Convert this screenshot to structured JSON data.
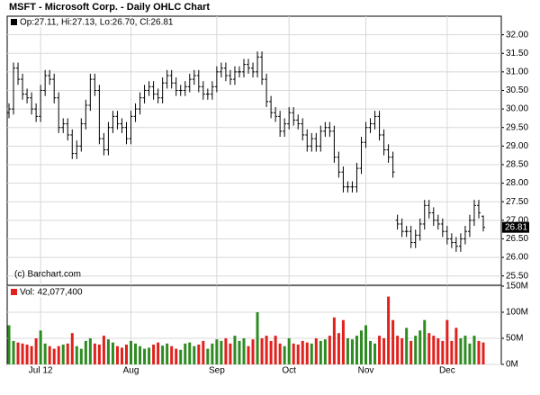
{
  "chart_data": {
    "type": "ohlc",
    "title": "MSFT - Microsoft Corp. - Daily OHLC Chart",
    "ohlc_label": "Op:27.11, Hi:27.13, Lo:26.70, Cl:26.81",
    "credit": "(c) Barchart.com",
    "color": "#000000",
    "up_color": "#2e8b22",
    "down_color": "#e0211d",
    "grid": true,
    "categories": [
      null,
      null,
      null,
      null,
      null,
      null,
      null,
      "Jul 12",
      null,
      null,
      null,
      null,
      null,
      null,
      null,
      null,
      null,
      null,
      null,
      null,
      null,
      null,
      null,
      null,
      null,
      null,
      null,
      "Aug",
      null,
      null,
      null,
      null,
      null,
      null,
      null,
      null,
      null,
      null,
      null,
      null,
      null,
      null,
      null,
      null,
      null,
      null,
      "Sep",
      null,
      null,
      null,
      null,
      null,
      null,
      null,
      null,
      null,
      null,
      null,
      null,
      null,
      null,
      null,
      "Oct",
      null,
      null,
      null,
      null,
      null,
      null,
      null,
      null,
      null,
      null,
      null,
      null,
      null,
      null,
      null,
      null,
      "Nov",
      null,
      null,
      null,
      null,
      null,
      null,
      null,
      null,
      null,
      null,
      null,
      null,
      null,
      null,
      null,
      null,
      null,
      "Dec",
      null,
      null,
      null,
      null,
      null,
      null,
      null,
      null
    ],
    "open": [
      29.9,
      30.0,
      31.1,
      30.8,
      30.4,
      30.3,
      30.0,
      29.8,
      30.5,
      30.9,
      30.8,
      30.3,
      29.5,
      29.6,
      29.3,
      28.8,
      29.0,
      29.6,
      30.1,
      30.8,
      30.5,
      29.2,
      28.9,
      29.5,
      29.8,
      29.6,
      29.5,
      29.2,
      29.8,
      30.0,
      30.3,
      30.5,
      30.6,
      30.4,
      30.3,
      30.7,
      30.9,
      30.7,
      30.5,
      30.5,
      30.6,
      30.8,
      30.9,
      30.6,
      30.4,
      30.4,
      30.6,
      31.0,
      31.1,
      30.9,
      30.8,
      31.0,
      31.0,
      31.2,
      31.1,
      31.0,
      31.4,
      30.8,
      30.2,
      29.9,
      29.8,
      29.4,
      29.6,
      29.9,
      29.7,
      29.6,
      29.3,
      29.0,
      29.2,
      29.0,
      29.4,
      29.5,
      29.4,
      28.7,
      28.3,
      27.9,
      27.9,
      27.9,
      28.4,
      29.1,
      29.5,
      29.6,
      29.8,
      29.3,
      28.9,
      28.7,
      27.0,
      26.9,
      26.7,
      26.7,
      26.4,
      26.6,
      26.9,
      27.4,
      27.2,
      27.0,
      26.9,
      26.7,
      26.5,
      26.4,
      26.3,
      26.5,
      26.7,
      27.0,
      27.4,
      27.11
    ],
    "high": [
      30.15,
      31.25,
      31.25,
      30.95,
      30.55,
      30.45,
      30.15,
      30.65,
      31.05,
      31.05,
      30.95,
      30.45,
      29.75,
      29.75,
      29.45,
      29.15,
      29.75,
      30.25,
      30.95,
      30.95,
      30.65,
      29.35,
      29.65,
      29.95,
      29.95,
      29.75,
      29.65,
      29.95,
      30.15,
      30.45,
      30.65,
      30.75,
      30.75,
      30.55,
      30.85,
      31.05,
      31.05,
      30.85,
      30.65,
      30.75,
      30.95,
      31.05,
      31.05,
      30.75,
      30.55,
      30.75,
      31.15,
      31.25,
      31.25,
      31.05,
      31.15,
      31.15,
      31.35,
      31.35,
      31.25,
      31.55,
      31.55,
      30.95,
      30.35,
      30.05,
      29.95,
      29.75,
      30.05,
      30.05,
      29.85,
      29.75,
      29.45,
      29.35,
      29.35,
      29.55,
      29.65,
      29.65,
      29.55,
      28.85,
      28.45,
      28.05,
      28.05,
      28.55,
      29.25,
      29.65,
      29.75,
      29.95,
      29.95,
      29.45,
      29.05,
      28.85,
      27.15,
      27.05,
      26.85,
      26.85,
      26.75,
      27.05,
      27.55,
      27.55,
      27.35,
      27.15,
      27.05,
      26.85,
      26.65,
      26.55,
      26.65,
      26.85,
      27.15,
      27.55,
      27.55,
      27.13
    ],
    "low": [
      29.75,
      29.85,
      30.65,
      30.25,
      30.15,
      29.85,
      29.65,
      29.65,
      30.35,
      30.65,
      30.15,
      29.35,
      29.35,
      29.15,
      28.65,
      28.65,
      28.85,
      29.45,
      29.95,
      30.35,
      29.05,
      28.75,
      28.75,
      29.35,
      29.45,
      29.35,
      29.05,
      29.05,
      29.65,
      29.85,
      30.15,
      30.35,
      30.25,
      30.15,
      30.15,
      30.55,
      30.55,
      30.35,
      30.35,
      30.35,
      30.45,
      30.65,
      30.45,
      30.25,
      30.25,
      30.25,
      30.45,
      30.85,
      30.75,
      30.65,
      30.65,
      30.85,
      30.85,
      30.95,
      30.85,
      30.85,
      30.65,
      30.05,
      29.75,
      29.65,
      29.25,
      29.25,
      29.45,
      29.55,
      29.45,
      29.15,
      28.85,
      28.85,
      28.85,
      28.85,
      29.25,
      29.25,
      28.55,
      28.15,
      27.75,
      27.75,
      27.75,
      27.75,
      28.25,
      28.95,
      29.35,
      29.45,
      29.15,
      28.75,
      28.55,
      28.15,
      26.75,
      26.55,
      26.55,
      26.25,
      26.25,
      26.45,
      26.75,
      27.05,
      26.85,
      26.75,
      26.55,
      26.35,
      26.25,
      26.15,
      26.15,
      26.35,
      26.55,
      26.85,
      27.05,
      26.7
    ],
    "close": [
      30.0,
      31.1,
      30.8,
      30.4,
      30.3,
      30.0,
      29.8,
      30.5,
      30.9,
      30.8,
      30.3,
      29.5,
      29.6,
      29.3,
      28.8,
      29.0,
      29.6,
      30.1,
      30.8,
      30.5,
      29.2,
      28.9,
      29.5,
      29.8,
      29.6,
      29.5,
      29.2,
      29.8,
      30.0,
      30.3,
      30.5,
      30.6,
      30.4,
      30.3,
      30.7,
      30.9,
      30.7,
      30.5,
      30.5,
      30.6,
      30.8,
      30.9,
      30.6,
      30.4,
      30.4,
      30.6,
      31.0,
      31.1,
      30.9,
      30.8,
      31.0,
      31.0,
      31.2,
      31.1,
      31.0,
      31.4,
      30.8,
      30.2,
      29.9,
      29.8,
      29.4,
      29.6,
      29.9,
      29.7,
      29.6,
      29.3,
      29.0,
      29.2,
      29.0,
      29.4,
      29.5,
      29.4,
      28.7,
      28.3,
      27.9,
      27.9,
      27.9,
      28.4,
      29.1,
      29.5,
      29.6,
      29.8,
      29.3,
      28.9,
      28.7,
      28.3,
      26.9,
      26.7,
      26.7,
      26.4,
      26.6,
      26.9,
      27.4,
      27.2,
      27.0,
      26.9,
      26.7,
      26.5,
      26.4,
      26.3,
      26.5,
      26.7,
      27.0,
      27.4,
      27.2,
      26.81
    ],
    "ylim": [
      25.25,
      32.5
    ],
    "yticks": [
      {
        "value": 25.5,
        "label": "25.50"
      },
      {
        "value": 26,
        "label": "26.00"
      },
      {
        "value": 26.5,
        "label": "26.50"
      },
      {
        "value": 27,
        "label": "27.00"
      },
      {
        "value": 27.5,
        "label": "27.50"
      },
      {
        "value": 28,
        "label": "28.00"
      },
      {
        "value": 28.5,
        "label": "28.50"
      },
      {
        "value": 29,
        "label": "29.00"
      },
      {
        "value": 29.5,
        "label": "29.50"
      },
      {
        "value": 30,
        "label": "30.00"
      },
      {
        "value": 30.5,
        "label": "30.50"
      },
      {
        "value": 31,
        "label": "31.00"
      },
      {
        "value": 31.5,
        "label": "31.50"
      },
      {
        "value": 32,
        "label": "32.00"
      }
    ],
    "volume": {
      "label": "Vol: 42,077,400",
      "values": [
        75,
        45,
        42,
        40,
        38,
        35,
        50,
        65,
        40,
        35,
        30,
        35,
        38,
        40,
        60,
        35,
        30,
        45,
        50,
        40,
        38,
        55,
        48,
        42,
        35,
        32,
        38,
        45,
        40,
        35,
        30,
        32,
        38,
        42,
        36,
        40,
        35,
        30,
        28,
        40,
        42,
        35,
        38,
        45,
        30,
        40,
        48,
        45,
        50,
        40,
        55,
        45,
        50,
        35,
        48,
        100,
        50,
        55,
        45,
        55,
        40,
        35,
        50,
        40,
        38,
        45,
        42,
        40,
        50,
        45,
        48,
        55,
        90,
        60,
        85,
        50,
        48,
        55,
        65,
        75,
        45,
        40,
        55,
        50,
        130,
        85,
        55,
        50,
        70,
        45,
        55,
        65,
        85,
        60,
        55,
        50,
        45,
        85,
        45,
        70,
        50,
        55,
        40,
        55,
        45,
        42.0774
      ],
      "ylim": [
        0,
        150
      ],
      "yticks": [
        {
          "value": 0,
          "label": "0M"
        },
        {
          "value": 50,
          "label": "50M"
        },
        {
          "value": 100,
          "label": "100M"
        },
        {
          "value": 150,
          "label": "150M"
        }
      ]
    }
  }
}
